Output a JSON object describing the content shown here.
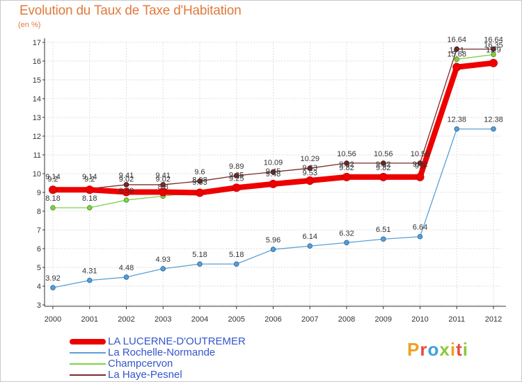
{
  "title": "Evolution du Taux de Taxe d'Habitation",
  "subtitle": "(en %)",
  "brand": {
    "text": "Proxiti",
    "colors": [
      "#f0a020",
      "#e84c3c",
      "#3ca0e0",
      "#8cc83c",
      "#f0a020",
      "#e84c3c",
      "#8cc83c"
    ]
  },
  "chart_data": {
    "type": "line",
    "x": [
      "2000",
      "2001",
      "2002",
      "2003",
      "2004",
      "2005",
      "2006",
      "2007",
      "2008",
      "2009",
      "2010",
      "2011",
      "2012"
    ],
    "ylim": [
      3,
      17
    ],
    "yticks": [
      "3",
      "4",
      "5",
      "6",
      "7",
      "8",
      "9",
      "10",
      "11",
      "12",
      "13",
      "14",
      "15",
      "16",
      "17"
    ],
    "grid": true,
    "legend_position": "bottom-left",
    "series": [
      {
        "name": "LA LUCERNE-D'OUTREMER",
        "color": "#ee0000",
        "width": 8,
        "values": [
          9.14,
          9.14,
          9.02,
          9.02,
          8.98,
          9.25,
          9.45,
          9.63,
          9.82,
          9.82,
          9.82,
          15.68,
          15.9
        ],
        "labels": [
          "9.14",
          "9.14",
          "9.02",
          "9.02",
          "8.98",
          "9.25",
          "9.45",
          "9.63",
          "9.82",
          "9.82",
          "9.82",
          "15.68",
          "15.9"
        ]
      },
      {
        "name": "La Rochelle-Normande",
        "color": "#5a9fd4",
        "width": 1.3,
        "values": [
          3.92,
          4.31,
          4.48,
          4.93,
          5.18,
          5.18,
          5.96,
          6.14,
          6.32,
          6.51,
          6.64,
          12.38,
          12.38
        ],
        "labels": [
          "3.92",
          "4.31",
          "4.48",
          "4.93",
          "5.18",
          "5.18",
          "5.96",
          "6.14",
          "6.32",
          "6.51",
          "6.64",
          "12.38",
          "12.38"
        ]
      },
      {
        "name": "Champcervon",
        "color": "#7ed04a",
        "width": 1.3,
        "values": [
          8.18,
          8.18,
          8.59,
          8.8,
          9.03,
          9.25,
          9.48,
          9.53,
          9.82,
          9.82,
          9.9,
          16.1,
          16.35
        ],
        "labels": [
          "8.18",
          "8.18",
          "8.59",
          "8.8",
          "9.03",
          "9.25",
          "9.48",
          "9.53",
          "9.82",
          "9.82",
          "9.9",
          "16.1",
          "16.35"
        ]
      },
      {
        "name": "La Haye-Pesnel",
        "color": "#7a2a2a",
        "width": 1.3,
        "values": [
          9.2,
          9.2,
          9.41,
          9.41,
          9.6,
          9.89,
          10.09,
          10.29,
          10.56,
          10.56,
          10.56,
          16.64,
          16.64
        ],
        "labels": [
          "9.2",
          "9.2",
          "9.41",
          "9.41",
          "9.6",
          "9.89",
          "10.09",
          "10.29",
          "10.56",
          "10.56",
          "10.56",
          "16.64",
          "16.64"
        ]
      }
    ]
  }
}
